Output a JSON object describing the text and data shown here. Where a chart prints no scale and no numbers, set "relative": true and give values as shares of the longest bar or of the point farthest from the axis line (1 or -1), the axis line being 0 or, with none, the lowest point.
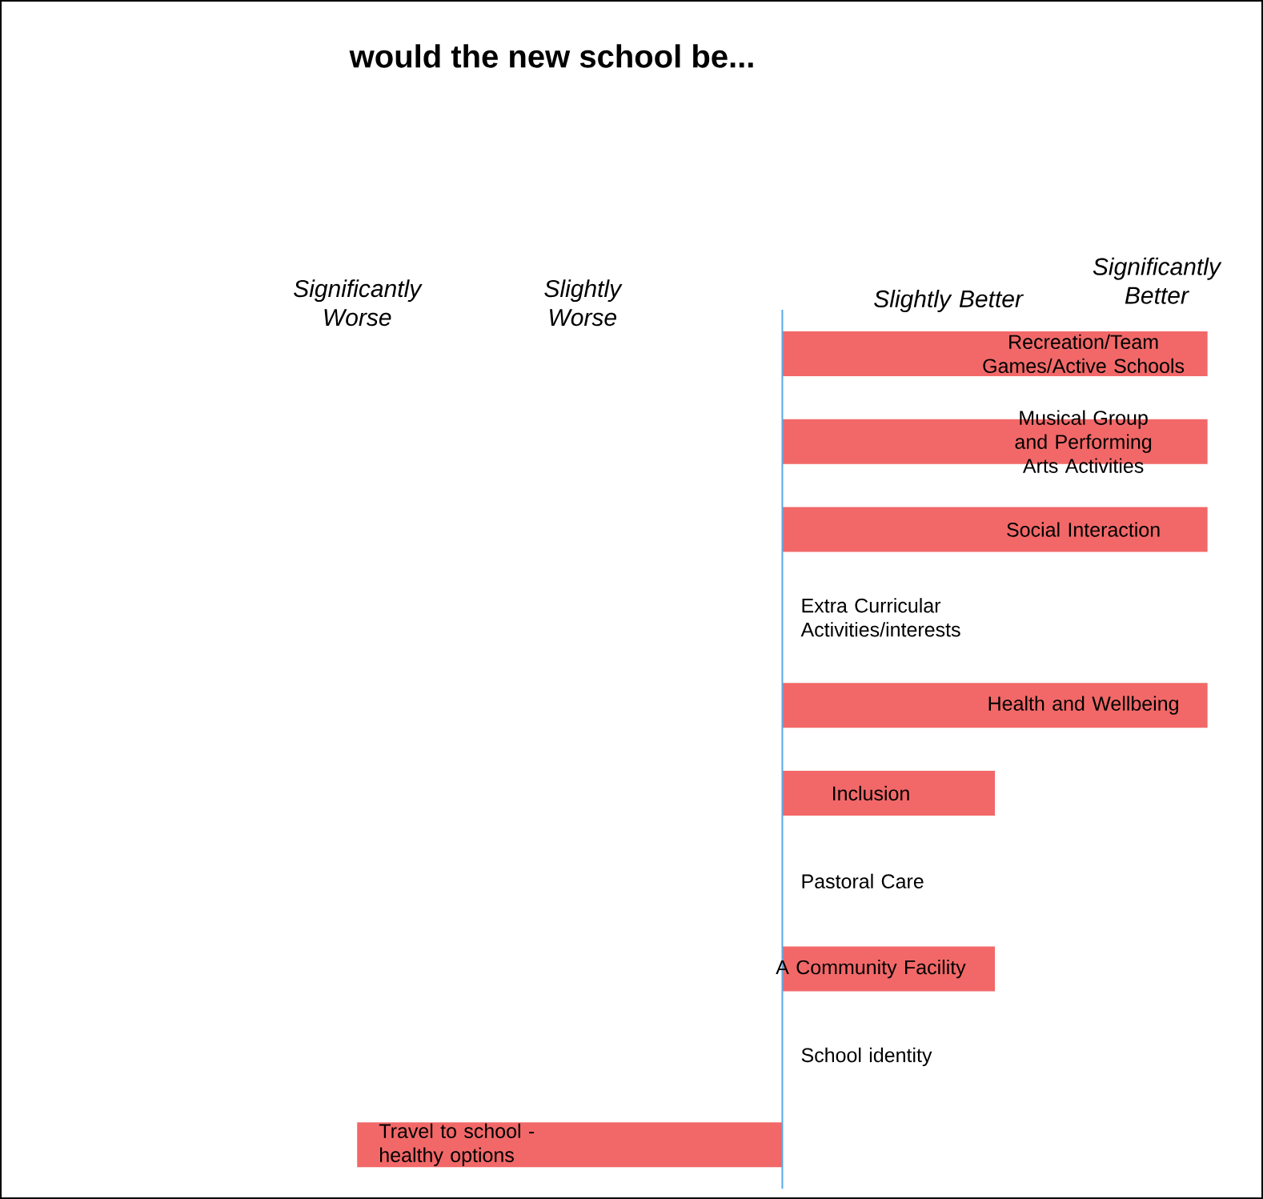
{
  "chart_data": {
    "type": "bar",
    "orientation": "horizontal",
    "relative": true,
    "title": "would the new school be...",
    "categories": [
      "Recreation/Team Games/Active Schools",
      "Musical Group and Performing Arts Activities",
      "Social Interaction",
      "Extra Curricular Activities/interests",
      "Health and Wellbeing",
      "Inclusion",
      "Pastoral Care",
      "A Community Facility",
      "School identity",
      "Travel to school - healthy options"
    ],
    "values": [
      1,
      1,
      1,
      0,
      1,
      0.5,
      0,
      0.5,
      0,
      -1
    ],
    "color": "#f26868",
    "annotations": [
      "Significantly Worse",
      "Slightly Worse",
      "Slightly Better",
      "Significantly Better"
    ]
  }
}
